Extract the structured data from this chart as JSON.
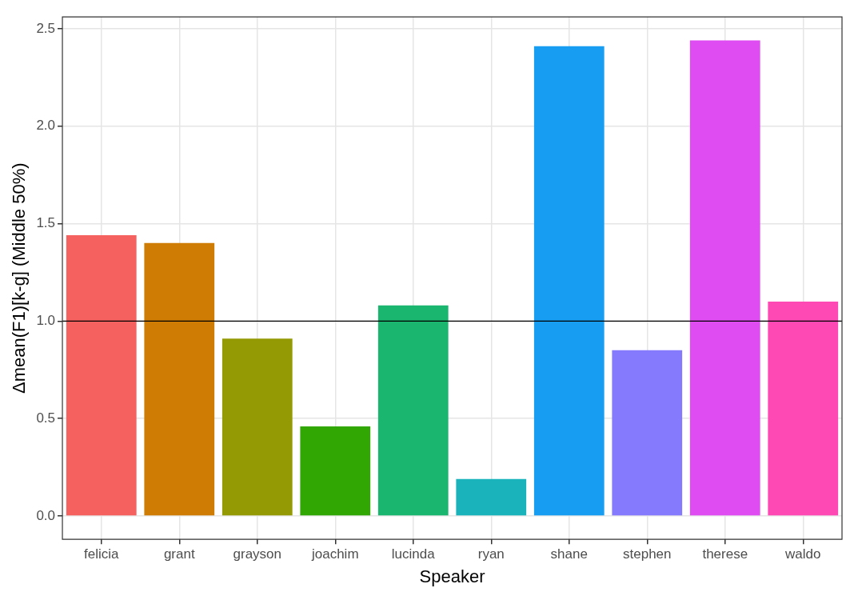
{
  "chart_data": {
    "type": "bar",
    "xlabel": "Speaker",
    "ylabel": "Δmean(F1)[k-g] (Middle 50%)",
    "categories": [
      "felicia",
      "grant",
      "grayson",
      "joachim",
      "lucinda",
      "ryan",
      "shane",
      "stephen",
      "therese",
      "waldo"
    ],
    "values": [
      1.44,
      1.4,
      0.91,
      0.46,
      1.08,
      0.19,
      2.41,
      0.85,
      2.44,
      1.1
    ],
    "colors": [
      "#f4615e",
      "#cf7c05",
      "#939a04",
      "#30a703",
      "#1ab56e",
      "#1ab3bc",
      "#179ef3",
      "#8579fe",
      "#df4cf2",
      "#fe48b4"
    ],
    "ylim": [
      -0.12,
      2.56
    ],
    "yticks": [
      {
        "value": 0,
        "label": "0.0"
      },
      0.5,
      {
        "value": 1,
        "label": "1.0"
      },
      1.5,
      {
        "value": 2,
        "label": "2.0"
      },
      2.5
    ],
    "ref_lines": [
      {
        "axis": "y",
        "value": 1,
        "color": "#000000"
      }
    ],
    "grid": true,
    "legend": false
  }
}
